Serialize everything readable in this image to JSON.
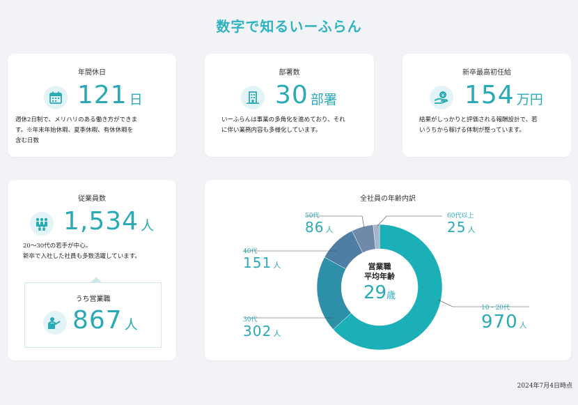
{
  "page": {
    "title": "数字で知るいーふらん",
    "as_of": "2024年7月4日時点"
  },
  "cards": {
    "holidays": {
      "label": "年間休日",
      "value": "121",
      "unit": "日",
      "icon": "calendar-icon",
      "description": "週休2日制で、メリハリのある働き方ができま\nす。※年末年始休暇、夏季休暇、有休休暇を\n含む日数"
    },
    "departments": {
      "label": "部署数",
      "value": "30",
      "unit": "部署",
      "icon": "building-icon",
      "description": "いーふらんは事業の多角化を進めており、それ\nに伴い業務内容も多様化しています。"
    },
    "salary": {
      "label": "新卒最高初任給",
      "value": "154",
      "unit": "万円",
      "icon": "money-hand-icon",
      "description": "結果がしっかりと評価される報酬設計で、若\nいうちから稼げる体制が整っています。"
    },
    "employees": {
      "label": "従業員数",
      "value": "1,534",
      "unit": "人",
      "icon": "people-group-icon",
      "description": "20〜30代の若手が中心。\n新卒で入社した社員も多数活躍しています。",
      "sales": {
        "label": "うち営業職",
        "value": "867",
        "unit": "人",
        "icon": "presenter-icon"
      }
    },
    "age": {
      "label": "全社員の年齢内訳",
      "center": {
        "line1": "営業職",
        "line2": "平均年齢",
        "value": "29",
        "unit": "歳"
      },
      "groups": [
        {
          "category": "10・20代",
          "value": "970",
          "unit": "人"
        },
        {
          "category": "30代",
          "value": "302",
          "unit": "人"
        },
        {
          "category": "40代",
          "value": "151",
          "unit": "人"
        },
        {
          "category": "50代",
          "value": "86",
          "unit": "人"
        },
        {
          "category": "60代以上",
          "value": "25",
          "unit": "人"
        }
      ]
    }
  },
  "chart_data": {
    "type": "pie",
    "title": "全社員の年齢内訳",
    "categories": [
      "10・20代",
      "30代",
      "40代",
      "50代",
      "60代以上"
    ],
    "values": [
      970,
      302,
      151,
      86,
      25
    ],
    "colors": [
      "#1bb0b8",
      "#2e8fa8",
      "#4e7ea3",
      "#6f8aa8",
      "#a7b4c9"
    ]
  }
}
